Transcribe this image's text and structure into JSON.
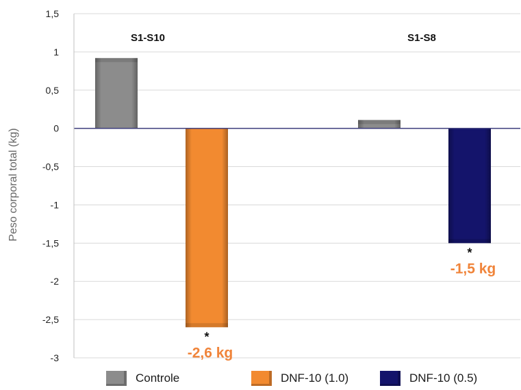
{
  "chart_data": {
    "type": "bar",
    "ylabel": "Peso corporal total (kg)",
    "xlabel": "",
    "ylim": [
      -3,
      1.5
    ],
    "yticks": [
      1.5,
      1,
      0.5,
      0,
      -0.5,
      -1,
      -1.5,
      -2,
      -2.5,
      -3
    ],
    "ytick_labels": [
      "1,5",
      "1",
      "0,5",
      "0",
      "-0,5",
      "-1",
      "-1,5",
      "-2",
      "-2,5",
      "-3"
    ],
    "grid": true,
    "legend_position": "bottom",
    "groups": [
      {
        "label": "S1-S10",
        "bars": [
          {
            "series": "Controle",
            "value": 0.92
          },
          {
            "series": "DNF-10 (1.0)",
            "value": -2.6,
            "marker": "*",
            "annotation": "-2,6 kg"
          }
        ]
      },
      {
        "label": "S1-S8",
        "bars": [
          {
            "series": "Controle",
            "value": 0.11
          },
          {
            "series": "DNF-10 (0.5)",
            "value": -1.5,
            "marker": "*",
            "annotation": "-1,5 kg"
          }
        ]
      }
    ],
    "series": [
      {
        "name": "Controle",
        "color": "#8c8c8c"
      },
      {
        "name": "DNF-10 (1.0)",
        "color": "#f28a30"
      },
      {
        "name": "DNF-10 (0.5)",
        "color": "#14146b"
      }
    ],
    "annotation_color": "#f0843a"
  }
}
